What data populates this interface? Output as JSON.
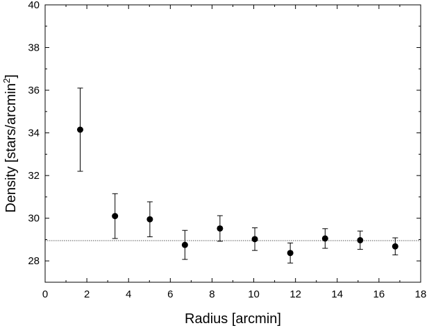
{
  "chart_data": {
    "type": "scatter",
    "xlabel": "Radius [arcmin]",
    "ylabel_main": "Density [stars/arcmin",
    "ylabel_sup": "2",
    "ylabel_end": "]",
    "xlim": [
      0,
      18
    ],
    "ylim": [
      27,
      40
    ],
    "xticks": [
      0,
      2,
      4,
      6,
      8,
      10,
      12,
      14,
      16,
      18
    ],
    "xtick_labels": [
      "0",
      "2",
      "4",
      "6",
      "8",
      "10",
      "12",
      "14",
      "16",
      "18"
    ],
    "yticks": [
      28,
      30,
      32,
      34,
      36,
      38,
      40
    ],
    "ytick_labels": [
      "28",
      "30",
      "32",
      "34",
      "36",
      "38",
      "40"
    ],
    "grid": false,
    "background_level": 28.95,
    "series": [
      {
        "points": [
          {
            "x": 1.68,
            "y": 34.15,
            "err": 1.95
          },
          {
            "x": 3.35,
            "y": 30.1,
            "err": 1.05
          },
          {
            "x": 5.02,
            "y": 29.95,
            "err": 0.82
          },
          {
            "x": 6.7,
            "y": 28.75,
            "err": 0.68
          },
          {
            "x": 8.38,
            "y": 29.52,
            "err": 0.6
          },
          {
            "x": 10.05,
            "y": 29.02,
            "err": 0.53
          },
          {
            "x": 11.75,
            "y": 28.37,
            "err": 0.47
          },
          {
            "x": 13.42,
            "y": 29.05,
            "err": 0.46
          },
          {
            "x": 15.1,
            "y": 28.97,
            "err": 0.43
          },
          {
            "x": 16.78,
            "y": 28.68,
            "err": 0.4
          }
        ]
      }
    ]
  },
  "colors": {
    "marker": "#000000",
    "axis": "#000000",
    "background_line": "#555555"
  }
}
